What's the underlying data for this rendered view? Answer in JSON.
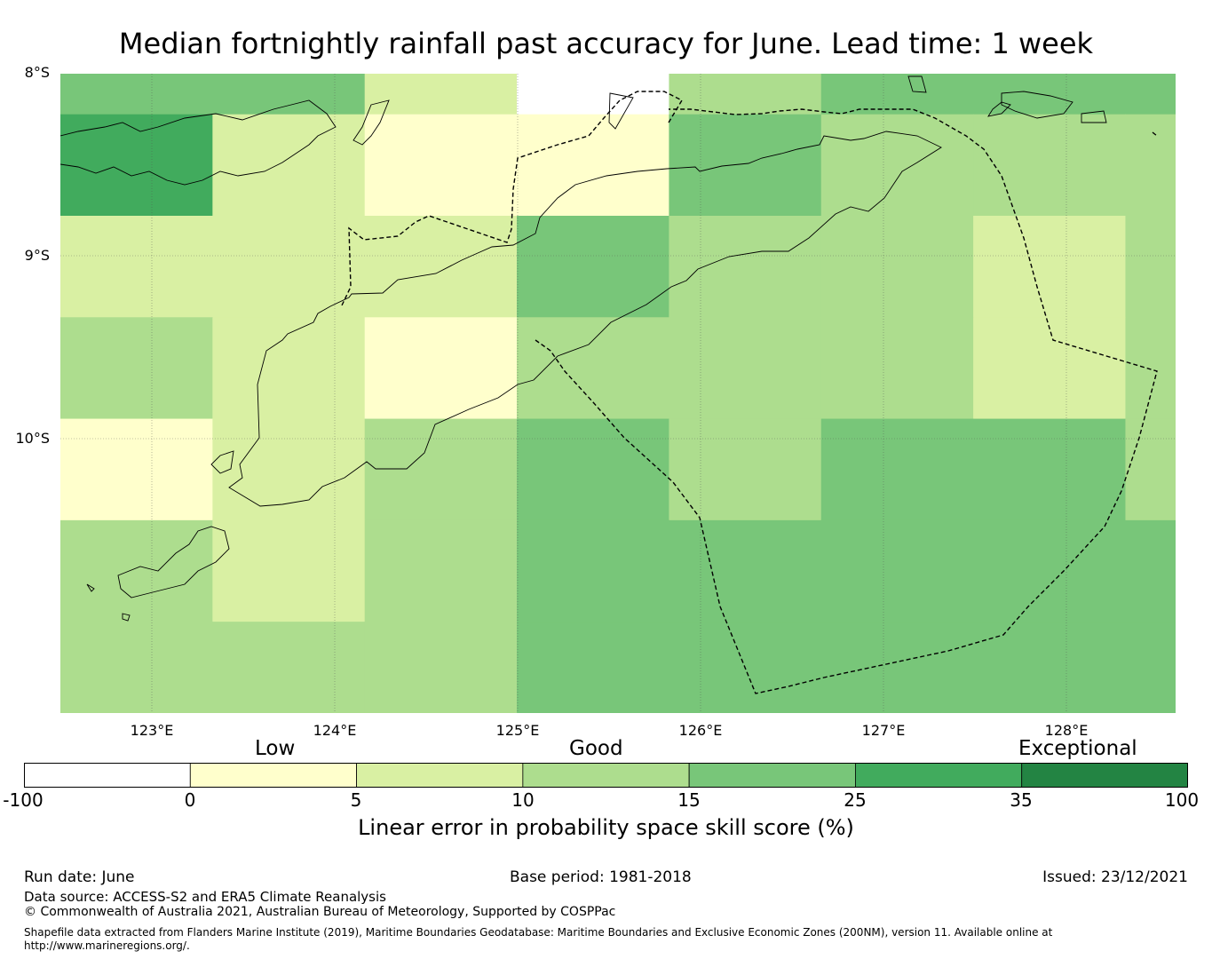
{
  "title": "Median fortnightly rainfall past accuracy for June. Lead time: 1 week",
  "lat_labels": [
    "8°S",
    "9°S",
    "10°S"
  ],
  "lon_labels": [
    "123°E",
    "124°E",
    "125°E",
    "126°E",
    "127°E",
    "128°E"
  ],
  "colorbar": {
    "category_labels": [
      "Low",
      "Good",
      "Exceptional"
    ],
    "tick_labels": [
      "-100",
      "0",
      "5",
      "10",
      "15",
      "25",
      "35",
      "100"
    ],
    "colors": [
      "#ffffff",
      "#ffffcc",
      "#d9f0a3",
      "#addd8e",
      "#78c679",
      "#41ab5d",
      "#238443"
    ],
    "title": "Linear error in probability space skill score (%)"
  },
  "footer": {
    "run_date": "Run date: June",
    "base_period": "Base period: 1981-2018",
    "issued": "Issued: 23/12/2021",
    "data_source": "Data source: ACCESS-S2 and ERA5 Climate Reanalysis",
    "copyright": "© Commonwealth of Australia 2021, Australian Bureau of Meteorology, Supported by COSPPac",
    "shapefile_line1": "Shapefile data extracted from Flanders Marine Institute (2019), Maritime Boundaries Geodatabase: Maritime Boundaries and Exclusive Economic Zones (200NM), version 11. Available online at",
    "shapefile_line2": "http://www.marineregions.org/."
  },
  "chart_data": {
    "type": "heatmap",
    "title": "Median fortnightly rainfall past accuracy for June. Lead time: 1 week",
    "xlabel": "",
    "ylabel": "",
    "x_range_deg_e": [
      122.5,
      128.6
    ],
    "y_range_deg_s": [
      8.0,
      11.5
    ],
    "grid": true,
    "value_meaning": "skill score category index: 0 = -100..0, 1 = 0..5, 2 = 5..10, 3 = 10..15, 4 = 15..25, 5 = 25..35, 6 = 35..100",
    "rows": [
      [
        4,
        4,
        2,
        0,
        3,
        4,
        4,
        4
      ],
      [
        5,
        2,
        1,
        1,
        4,
        3,
        3,
        3
      ],
      [
        2,
        2,
        2,
        4,
        3,
        3,
        2,
        3
      ],
      [
        3,
        2,
        1,
        3,
        3,
        3,
        2,
        3
      ],
      [
        1,
        2,
        3,
        4,
        3,
        4,
        4,
        3
      ],
      [
        3,
        2,
        3,
        4,
        4,
        4,
        4,
        4
      ],
      [
        3,
        3,
        3,
        4,
        4,
        4,
        4,
        4
      ]
    ]
  }
}
